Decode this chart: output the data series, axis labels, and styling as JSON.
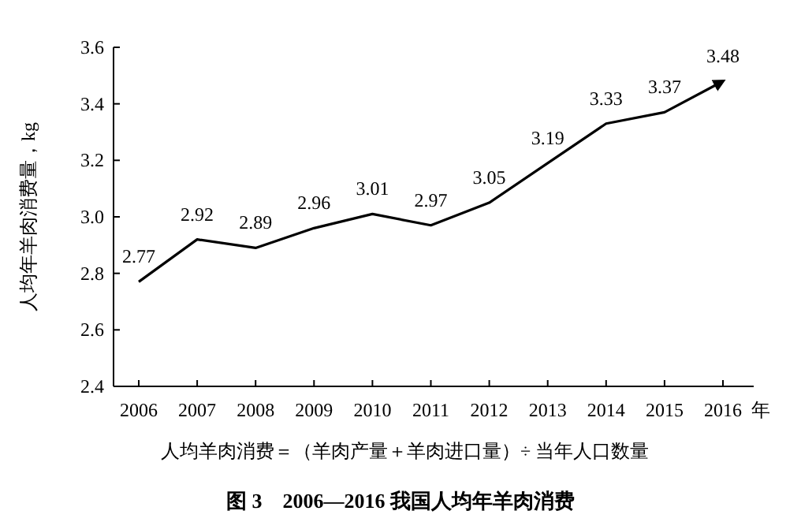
{
  "chart_data": {
    "type": "line",
    "title": "图 3　2006—2016 我国人均年羊肉消费",
    "xlabel": "年",
    "ylabel": "人均年羊肉消费量，kg",
    "annotations": [
      "人均羊肉消费＝（羊肉产量＋羊肉进口量）÷ 当年人口数量"
    ],
    "categories": [
      "2006",
      "2007",
      "2008",
      "2009",
      "2010",
      "2011",
      "2012",
      "2013",
      "2014",
      "2015",
      "2016"
    ],
    "values": [
      2.77,
      2.92,
      2.89,
      2.96,
      3.01,
      2.97,
      3.05,
      3.19,
      3.33,
      3.37,
      3.48
    ],
    "color": "#000000",
    "data_labels": true,
    "ylim": [
      2.4,
      3.6
    ],
    "yticks": [
      2.4,
      2.6,
      2.8,
      {
        "value": 3,
        "label": "3.0"
      },
      3.2,
      3.4,
      3.6
    ],
    "marker": "none",
    "line_style": "solid"
  }
}
